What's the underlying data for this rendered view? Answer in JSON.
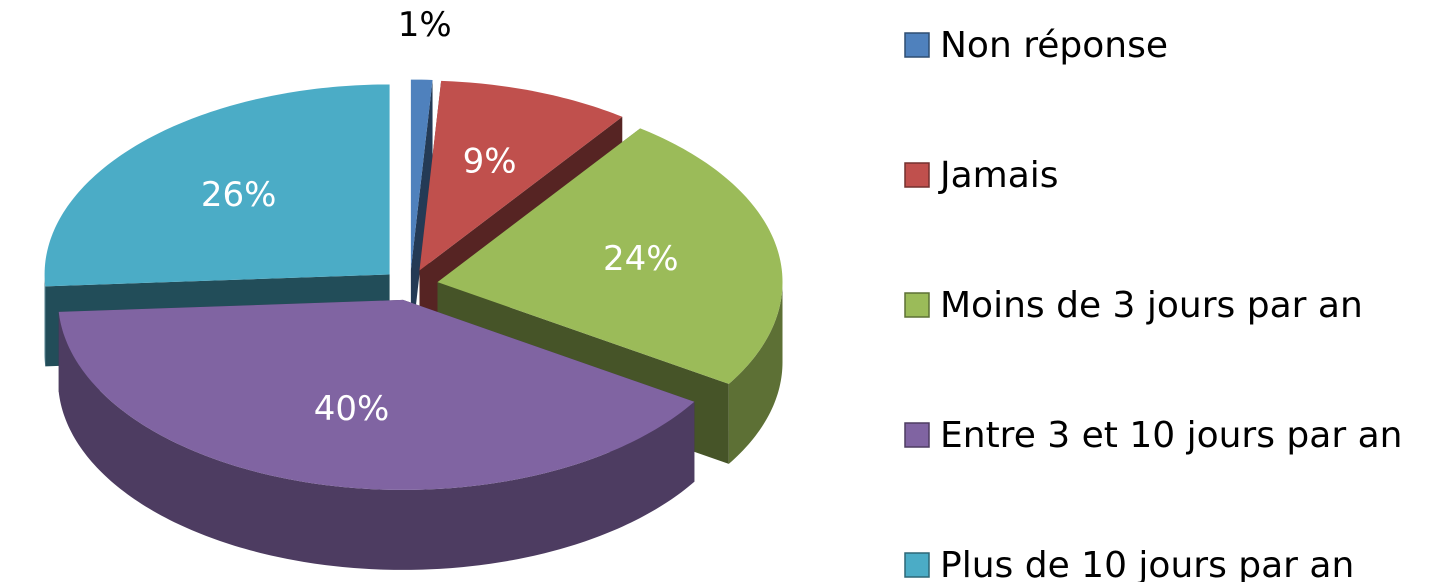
{
  "chart_data": {
    "type": "pie",
    "categories": [
      "Non réponse",
      "Jamais",
      "Moins de 3 jours par an",
      "Entre 3 et 10 jours par an",
      "Plus de 10 jours par an"
    ],
    "values": [
      1,
      9,
      24,
      40,
      26
    ],
    "value_labels": [
      "1%",
      "9%",
      "24%",
      "40%",
      "26%"
    ],
    "colors": [
      "#4f81bd",
      "#c0504d",
      "#9bbb59",
      "#8064a2",
      "#4bacc6"
    ],
    "legend": "right"
  }
}
